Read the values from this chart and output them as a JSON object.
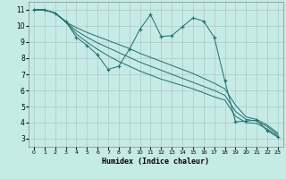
{
  "xlabel": "Humidex (Indice chaleur)",
  "bg_color": "#c5ebe6",
  "grid_color": "#b0b0b0",
  "line_color": "#1e6e6e",
  "xlim": [
    -0.5,
    23.5
  ],
  "ylim": [
    2.5,
    11.5
  ],
  "xticks": [
    0,
    1,
    2,
    3,
    4,
    5,
    6,
    7,
    8,
    9,
    10,
    11,
    12,
    13,
    14,
    15,
    16,
    17,
    18,
    19,
    20,
    21,
    22,
    23
  ],
  "yticks": [
    3,
    4,
    5,
    6,
    7,
    8,
    9,
    10,
    11
  ],
  "series": [
    {
      "x": [
        0,
        1,
        2,
        3,
        4,
        5,
        6,
        7,
        8,
        9,
        10,
        11,
        12,
        13,
        14,
        15,
        16,
        17,
        18,
        19,
        20,
        21,
        22,
        23
      ],
      "y": [
        11,
        11,
        10.8,
        10.3,
        9.3,
        8.8,
        8.2,
        7.3,
        7.5,
        8.55,
        9.8,
        10.7,
        9.35,
        9.4,
        9.95,
        10.5,
        10.3,
        9.3,
        6.6,
        4.05,
        4.1,
        4.15,
        3.5,
        3.1
      ],
      "marker": true
    },
    {
      "x": [
        0,
        1,
        2,
        3,
        4,
        5,
        6,
        7,
        8,
        9,
        10,
        11,
        12,
        13,
        14,
        15,
        16,
        17,
        18,
        19,
        20,
        21,
        22,
        23
      ],
      "y": [
        11,
        11,
        10.8,
        10.25,
        9.5,
        9.0,
        8.55,
        8.15,
        7.8,
        7.5,
        7.2,
        6.95,
        6.7,
        6.5,
        6.3,
        6.1,
        5.85,
        5.6,
        5.4,
        4.4,
        4.0,
        3.95,
        3.6,
        3.15
      ],
      "marker": false
    },
    {
      "x": [
        0,
        1,
        2,
        3,
        4,
        5,
        6,
        7,
        8,
        9,
        10,
        11,
        12,
        13,
        14,
        15,
        16,
        17,
        18,
        19,
        20,
        21,
        22,
        23
      ],
      "y": [
        11,
        11,
        10.8,
        10.25,
        9.7,
        9.3,
        8.95,
        8.65,
        8.35,
        8.05,
        7.75,
        7.5,
        7.25,
        7.0,
        6.75,
        6.5,
        6.25,
        6.0,
        5.7,
        4.7,
        4.2,
        4.1,
        3.75,
        3.25
      ],
      "marker": false
    },
    {
      "x": [
        0,
        1,
        2,
        3,
        4,
        5,
        6,
        7,
        8,
        9,
        10,
        11,
        12,
        13,
        14,
        15,
        16,
        17,
        18,
        19,
        20,
        21,
        22,
        23
      ],
      "y": [
        11,
        11,
        10.8,
        10.25,
        9.9,
        9.6,
        9.35,
        9.1,
        8.85,
        8.6,
        8.3,
        8.05,
        7.8,
        7.55,
        7.3,
        7.05,
        6.75,
        6.45,
        6.1,
        5.1,
        4.35,
        4.2,
        3.85,
        3.35
      ],
      "marker": false
    }
  ]
}
